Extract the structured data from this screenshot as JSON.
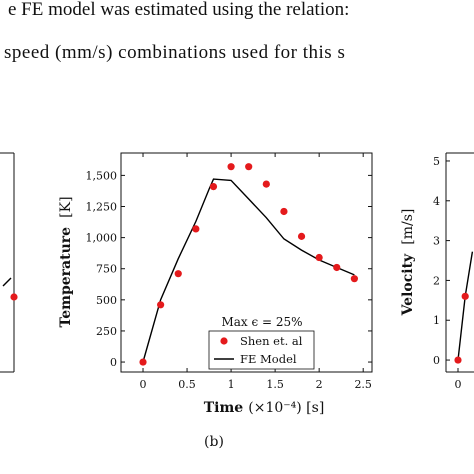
{
  "text": {
    "line1": "e FE model was estimated using the relation:",
    "line2": "speed (mm/s) combinations used for this s"
  },
  "chart_data": [
    {
      "type": "scatter",
      "partial": true,
      "series": [
        {
          "name": "",
          "kind": "marker",
          "x": [
            0
          ],
          "y": [
            0
          ]
        }
      ]
    },
    {
      "type": "line",
      "xlabel": "Time",
      "xlabel_unit": "(×10⁻⁴) [s]",
      "ylabel": "Temperature",
      "ylabel_unit": "[K]",
      "xlim": [
        -0.25,
        2.6
      ],
      "ylim": [
        -80,
        1680
      ],
      "xticks": [
        0,
        0.5,
        1,
        1.5,
        2,
        2.5
      ],
      "xtick_labels": [
        "0",
        "0.5",
        "1",
        "1.5",
        "2",
        "2.5"
      ],
      "yticks": [
        0,
        250,
        500,
        750,
        1000,
        1250,
        1500
      ],
      "ytick_labels": [
        "0",
        "250",
        "500",
        "750",
        "1,000",
        "1,250",
        "1,500"
      ],
      "annotation": "Max ϵ = 25%",
      "legend_position": "bottom-center",
      "caption": "(b)",
      "series": [
        {
          "name": "Shen et. al",
          "kind": "marker",
          "color": "#e41a1c",
          "x": [
            0,
            0.2,
            0.4,
            0.6,
            0.8,
            1.0,
            1.2,
            1.4,
            1.6,
            1.8,
            2.0,
            2.2,
            2.4
          ],
          "y": [
            0,
            460,
            710,
            1070,
            1410,
            1570,
            1570,
            1430,
            1210,
            1010,
            840,
            760,
            670
          ]
        },
        {
          "name": "FE Model",
          "kind": "line",
          "color": "#000000",
          "x": [
            0,
            0.2,
            0.4,
            0.6,
            0.75,
            0.8,
            1.0,
            1.2,
            1.4,
            1.6,
            1.8,
            2.0,
            2.2,
            2.4
          ],
          "y": [
            0,
            500,
            830,
            1130,
            1390,
            1470,
            1460,
            1310,
            1160,
            990,
            900,
            820,
            760,
            700
          ]
        }
      ]
    },
    {
      "type": "line",
      "partial": true,
      "ylabel": "Velocity",
      "ylabel_unit": "[m/s]",
      "ylim": [
        -0.3,
        5.2
      ],
      "yticks": [
        0,
        1,
        2,
        3,
        4,
        5
      ],
      "ytick_labels": [
        "0",
        "1",
        "2",
        "3",
        "4",
        "5"
      ],
      "xtick_labels": [
        "0"
      ],
      "series": [
        {
          "name": "",
          "kind": "marker",
          "color": "#e41a1c",
          "x": [
            0,
            0.06
          ],
          "y": [
            0,
            1.6
          ]
        },
        {
          "name": "",
          "kind": "line",
          "color": "#000000",
          "x": [
            0,
            0.06,
            0.12
          ],
          "y": [
            0,
            1.6,
            2.72
          ]
        }
      ]
    }
  ]
}
